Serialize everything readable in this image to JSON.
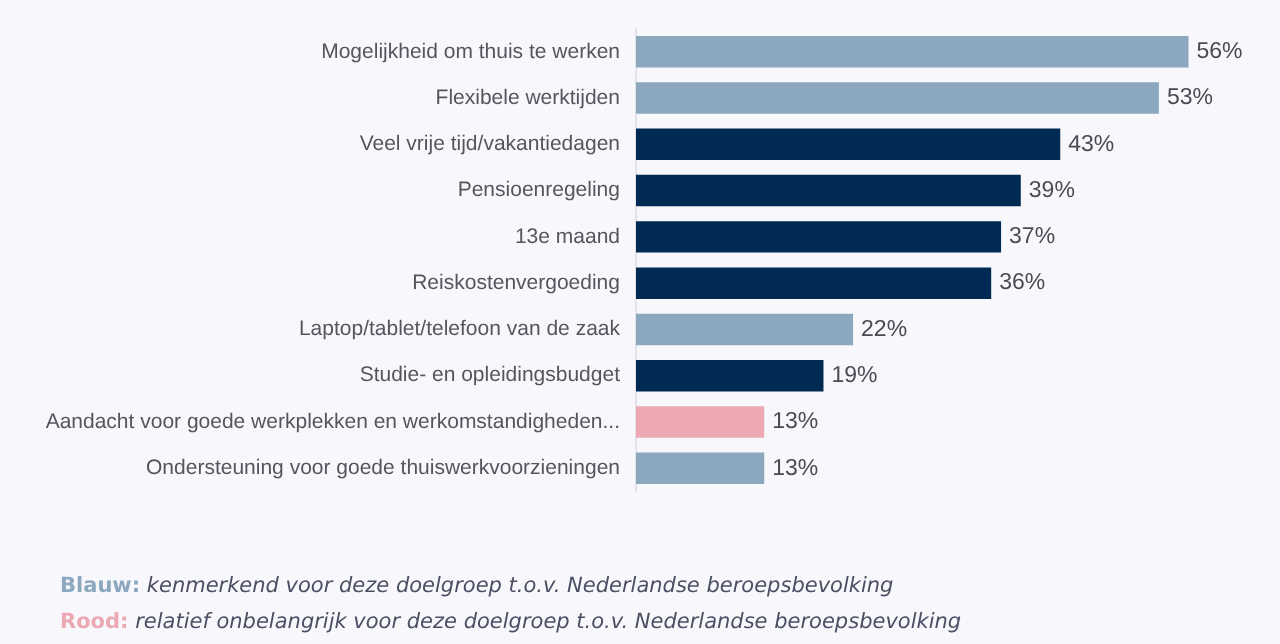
{
  "chart_data": {
    "type": "bar",
    "orientation": "horizontal",
    "categories": [
      "Mogelijkheid om thuis te werken",
      "Flexibele werktijden",
      "Veel vrije tijd/vakantiedagen",
      "Pensioenregeling",
      "13e maand",
      "Reiskostenvergoeding",
      "Laptop/tablet/telefoon van de zaak",
      "Studie- en opleidingsbudget",
      "Aandacht voor goede werkplekken en werkomstandigheden...",
      "Ondersteuning voor goede thuiswerkvoorzieningen"
    ],
    "values": [
      56,
      53,
      43,
      39,
      37,
      36,
      22,
      19,
      13,
      13
    ],
    "colors": [
      "#8ca8bf",
      "#8ca8bf",
      "#002a52",
      "#002a52",
      "#002a52",
      "#002a52",
      "#8ca8bf",
      "#002a52",
      "#eda9b3",
      "#8ca8bf"
    ],
    "value_labels": [
      "56%",
      "53%",
      "43%",
      "39%",
      "37%",
      "36%",
      "22%",
      "19%",
      "13%",
      "13%"
    ],
    "tick_labels": "y",
    "legend": false,
    "annotations": [
      "Blauw: kenmerkend voor deze doelgroep t.o.v. Nederlandse beroepsbevolking",
      "Rood: relatief onbelangrijk voor deze doelgroep t.o.v. Nederlandse beroepsbevolking"
    ]
  }
}
